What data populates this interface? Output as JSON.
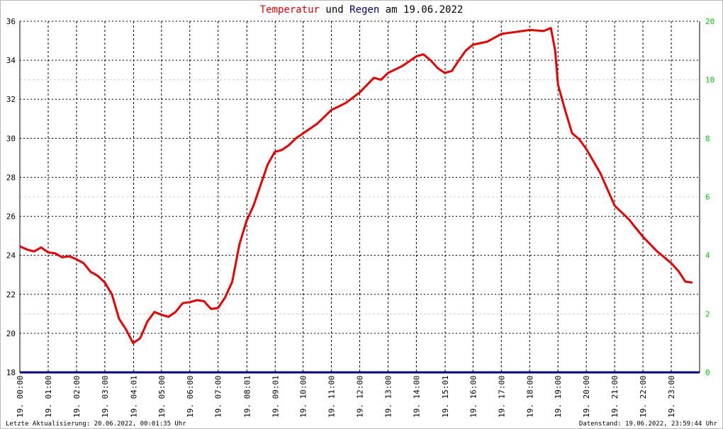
{
  "chart_data": {
    "type": "line",
    "title": [
      "und",
      "am 19.06.2022"
    ],
    "footer_left": "Letzte Aktualisierung: 20.06.2022, 00:01:35 Uhr",
    "footer_right": "Datenstand: 19.06.2022, 23:59:44 Uhr",
    "xlim": [
      0,
      24
    ],
    "xticks": [
      {
        "value": 0,
        "label": "19. 00:00"
      },
      {
        "value": 1,
        "label": "19. 01:00"
      },
      {
        "value": 2,
        "label": "19. 02:00"
      },
      {
        "value": 3,
        "label": "19. 03:00"
      },
      {
        "value": 4.0167,
        "label": "19. 04:01"
      },
      {
        "value": 5,
        "label": "19. 05:00"
      },
      {
        "value": 6,
        "label": "19. 06:00"
      },
      {
        "value": 7,
        "label": "19. 07:00"
      },
      {
        "value": 8.0167,
        "label": "19. 08:01"
      },
      {
        "value": 9.0167,
        "label": "19. 09:01"
      },
      {
        "value": 10,
        "label": "19. 10:00"
      },
      {
        "value": 11,
        "label": "19. 11:00"
      },
      {
        "value": 12,
        "label": "19. 12:00"
      },
      {
        "value": 13,
        "label": "19. 13:00"
      },
      {
        "value": 14,
        "label": "19. 14:00"
      },
      {
        "value": 15.0167,
        "label": "19. 15:01"
      },
      {
        "value": 16,
        "label": "19. 16:00"
      },
      {
        "value": 17,
        "label": "19. 17:00"
      },
      {
        "value": 18,
        "label": "19. 18:00"
      },
      {
        "value": 19,
        "label": "19. 19:00"
      },
      {
        "value": 20,
        "label": "19. 20:00"
      },
      {
        "value": 21,
        "label": "19. 21:00"
      },
      {
        "value": 22,
        "label": "19. 22:00"
      },
      {
        "value": 23,
        "label": "19. 23:00"
      }
    ],
    "ylim": [
      18,
      36
    ],
    "yticks": [
      18,
      20,
      22,
      24,
      26,
      28,
      30,
      32,
      34,
      36
    ],
    "y2lim": [
      0,
      12
    ],
    "y2ticks": [
      0,
      2,
      4,
      6,
      8,
      10
    ],
    "y2_top_label": "20",
    "grid": true,
    "series": [
      {
        "name": "Temperatur",
        "color": "#ee0000",
        "x": [
          0,
          0.25,
          0.5,
          0.75,
          1,
          1.25,
          1.5,
          1.75,
          2,
          2.25,
          2.5,
          2.75,
          3,
          3.25,
          3.5,
          3.75,
          4,
          4.25,
          4.5,
          4.75,
          5,
          5.25,
          5.5,
          5.75,
          6,
          6.25,
          6.5,
          6.75,
          7,
          7.25,
          7.5,
          7.75,
          8,
          8.25,
          8.5,
          8.75,
          9,
          9.25,
          9.5,
          9.75,
          10,
          10.5,
          11,
          11.5,
          12,
          12.5,
          12.75,
          13,
          13.5,
          14,
          14.25,
          14.5,
          14.75,
          15,
          15.25,
          15.5,
          15.75,
          16,
          16.5,
          17,
          17.5,
          18,
          18.5,
          18.75,
          18.9,
          19,
          19.25,
          19.5,
          19.75,
          20,
          20.5,
          21,
          21.5,
          22,
          22.5,
          23,
          23.25,
          23.5,
          23.75
        ],
        "values": [
          24.46,
          24.3,
          24.2,
          24.4,
          24.15,
          24.1,
          23.9,
          23.95,
          23.8,
          23.6,
          23.15,
          22.95,
          22.6,
          22.0,
          20.75,
          20.2,
          19.5,
          19.75,
          20.6,
          21.1,
          20.95,
          20.85,
          21.1,
          21.55,
          21.6,
          21.7,
          21.65,
          21.25,
          21.3,
          21.85,
          22.65,
          24.55,
          25.75,
          26.55,
          27.6,
          28.65,
          29.3,
          29.4,
          29.65,
          30.0,
          30.25,
          30.75,
          31.45,
          31.8,
          32.35,
          33.1,
          33.0,
          33.35,
          33.7,
          34.2,
          34.3,
          34.0,
          33.6,
          33.35,
          33.45,
          34.0,
          34.5,
          34.8,
          34.95,
          35.35,
          35.45,
          35.55,
          35.5,
          35.65,
          34.5,
          32.75,
          31.45,
          30.25,
          29.95,
          29.45,
          28.2,
          26.55,
          25.85,
          24.95,
          24.2,
          23.6,
          23.2,
          22.65,
          22.6
        ]
      },
      {
        "name": "Regen",
        "color": "#000080",
        "axis": "y2",
        "x": [
          0,
          24
        ],
        "values": [
          0,
          0
        ]
      }
    ]
  }
}
